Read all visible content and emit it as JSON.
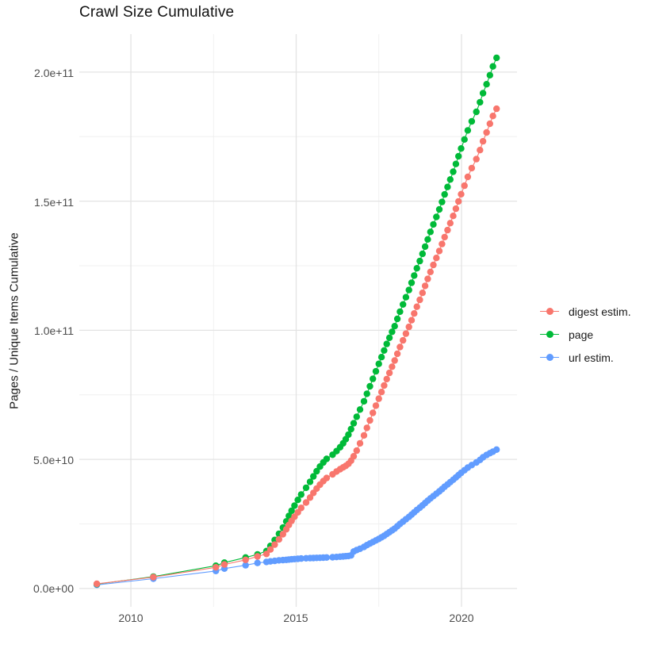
{
  "title": "Crawl Size Cumulative",
  "axes": {
    "y_label": "Pages / Unique Items Cumulative",
    "y_ticks": [
      "0.0e+00",
      "5.0e+10",
      "1.0e+11",
      "1.5e+11",
      "2.0e+11"
    ],
    "x_ticks": [
      "2010",
      "2015",
      "2020"
    ]
  },
  "legend": {
    "items": [
      {
        "label": "digest estim.",
        "color": "#F8766D"
      },
      {
        "label": "page",
        "color": "#00BA38"
      },
      {
        "label": "url estim.",
        "color": "#619CFF"
      }
    ]
  },
  "style_colors": {
    "grid_major": "#e3e3e3",
    "grid_minor": "#f0f0f0",
    "axis_text": "#4d4d4d",
    "title_text": "#111111"
  },
  "chart_data": {
    "type": "scatter",
    "title": "Crawl Size Cumulative",
    "xlabel": "",
    "ylabel": "Pages / Unique Items Cumulative",
    "xlim": [
      2008.44,
      2021.68
    ],
    "ylim_billions": [
      -7.1,
      214.7
    ],
    "x_major": [
      2010,
      2015,
      2020
    ],
    "x_minor": [
      2012.5,
      2017.5
    ],
    "y_major_billions": [
      0,
      50,
      100,
      150,
      200
    ],
    "y_minor_billions": [
      25,
      75,
      125,
      175
    ],
    "y_unit": 1000000000.0,
    "grid": true,
    "legend_position": "right",
    "point_radius": 4.2,
    "series": [
      {
        "name": "digest estim.",
        "color": "#F8766D",
        "points_year_billions": [
          [
            2008.97,
            1.8
          ],
          [
            2010.68,
            4.4
          ],
          [
            2012.57,
            8.2
          ],
          [
            2012.83,
            9.3
          ],
          [
            2013.47,
            11.1
          ],
          [
            2013.83,
            12.4
          ],
          [
            2014.1,
            13.4
          ],
          [
            2014.22,
            15.1
          ],
          [
            2014.35,
            17.0
          ],
          [
            2014.48,
            19.0
          ],
          [
            2014.6,
            21.0
          ],
          [
            2014.7,
            22.9
          ],
          [
            2014.78,
            24.6
          ],
          [
            2014.86,
            26.2
          ],
          [
            2014.95,
            27.8
          ],
          [
            2015.05,
            29.5
          ],
          [
            2015.15,
            31.2
          ],
          [
            2015.3,
            33.3
          ],
          [
            2015.42,
            35.2
          ],
          [
            2015.52,
            37.0
          ],
          [
            2015.62,
            38.7
          ],
          [
            2015.72,
            40.2
          ],
          [
            2015.82,
            41.6
          ],
          [
            2015.92,
            42.8
          ],
          [
            2016.1,
            44.2
          ],
          [
            2016.22,
            45.3
          ],
          [
            2016.33,
            46.2
          ],
          [
            2016.42,
            46.9
          ],
          [
            2016.5,
            47.5
          ],
          [
            2016.58,
            48.3
          ],
          [
            2016.66,
            49.5
          ],
          [
            2016.74,
            51.2
          ],
          [
            2016.83,
            53.4
          ],
          [
            2016.93,
            56.2
          ],
          [
            2017.05,
            59.3
          ],
          [
            2017.14,
            62.2
          ],
          [
            2017.23,
            65.1
          ],
          [
            2017.32,
            68.0
          ],
          [
            2017.41,
            70.8
          ],
          [
            2017.5,
            73.5
          ],
          [
            2017.58,
            76.1
          ],
          [
            2017.66,
            78.6
          ],
          [
            2017.74,
            81.1
          ],
          [
            2017.82,
            83.5
          ],
          [
            2017.9,
            85.9
          ],
          [
            2017.98,
            88.3
          ],
          [
            2018.06,
            90.9
          ],
          [
            2018.14,
            93.5
          ],
          [
            2018.23,
            96.1
          ],
          [
            2018.32,
            98.7
          ],
          [
            2018.41,
            101.3
          ],
          [
            2018.49,
            103.9
          ],
          [
            2018.57,
            106.5
          ],
          [
            2018.65,
            109.1
          ],
          [
            2018.74,
            111.8
          ],
          [
            2018.82,
            114.5
          ],
          [
            2018.9,
            117.2
          ],
          [
            2018.98,
            119.9
          ],
          [
            2019.06,
            122.6
          ],
          [
            2019.15,
            125.3
          ],
          [
            2019.24,
            128.0
          ],
          [
            2019.33,
            130.7
          ],
          [
            2019.41,
            133.4
          ],
          [
            2019.49,
            136.1
          ],
          [
            2019.58,
            138.8
          ],
          [
            2019.66,
            141.5
          ],
          [
            2019.75,
            144.3
          ],
          [
            2019.83,
            147.1
          ],
          [
            2019.91,
            149.9
          ],
          [
            2019.99,
            152.7
          ],
          [
            2020.09,
            156.0
          ],
          [
            2020.19,
            159.4
          ],
          [
            2020.31,
            162.8
          ],
          [
            2020.45,
            166.3
          ],
          [
            2020.56,
            169.8
          ],
          [
            2020.65,
            173.2
          ],
          [
            2020.76,
            176.6
          ],
          [
            2020.86,
            180.0
          ],
          [
            2020.95,
            183.0
          ],
          [
            2021.06,
            185.8
          ]
        ]
      },
      {
        "name": "page",
        "color": "#00BA38",
        "points_year_billions": [
          [
            2008.97,
            1.7
          ],
          [
            2010.68,
            4.6
          ],
          [
            2012.57,
            8.8
          ],
          [
            2012.83,
            10.0
          ],
          [
            2013.47,
            12.0
          ],
          [
            2013.83,
            13.2
          ],
          [
            2014.1,
            14.5
          ],
          [
            2014.22,
            16.5
          ],
          [
            2014.35,
            18.8
          ],
          [
            2014.48,
            21.2
          ],
          [
            2014.6,
            23.6
          ],
          [
            2014.7,
            26.0
          ],
          [
            2014.78,
            28.1
          ],
          [
            2014.86,
            30.1
          ],
          [
            2014.95,
            32.1
          ],
          [
            2015.05,
            34.3
          ],
          [
            2015.15,
            36.4
          ],
          [
            2015.3,
            39.0
          ],
          [
            2015.42,
            41.3
          ],
          [
            2015.52,
            43.4
          ],
          [
            2015.62,
            45.4
          ],
          [
            2015.72,
            47.2
          ],
          [
            2015.82,
            48.8
          ],
          [
            2015.92,
            50.2
          ],
          [
            2016.1,
            51.8
          ],
          [
            2016.22,
            53.2
          ],
          [
            2016.33,
            54.7
          ],
          [
            2016.42,
            56.2
          ],
          [
            2016.5,
            57.8
          ],
          [
            2016.58,
            59.6
          ],
          [
            2016.66,
            61.7
          ],
          [
            2016.74,
            64.0
          ],
          [
            2016.83,
            66.5
          ],
          [
            2016.93,
            69.3
          ],
          [
            2017.05,
            72.5
          ],
          [
            2017.14,
            75.4
          ],
          [
            2017.23,
            78.3
          ],
          [
            2017.32,
            81.2
          ],
          [
            2017.41,
            84.1
          ],
          [
            2017.5,
            87.0
          ],
          [
            2017.58,
            89.6
          ],
          [
            2017.66,
            92.2
          ],
          [
            2017.74,
            94.7
          ],
          [
            2017.82,
            97.1
          ],
          [
            2017.9,
            99.4
          ],
          [
            2017.98,
            101.6
          ],
          [
            2018.06,
            104.4
          ],
          [
            2018.14,
            107.2
          ],
          [
            2018.23,
            110.0
          ],
          [
            2018.32,
            112.8
          ],
          [
            2018.41,
            115.6
          ],
          [
            2018.49,
            118.4
          ],
          [
            2018.57,
            121.2
          ],
          [
            2018.65,
            124.0
          ],
          [
            2018.74,
            126.8
          ],
          [
            2018.82,
            129.6
          ],
          [
            2018.9,
            132.4
          ],
          [
            2018.98,
            135.2
          ],
          [
            2019.06,
            138.1
          ],
          [
            2019.15,
            141.0
          ],
          [
            2019.24,
            143.9
          ],
          [
            2019.33,
            146.8
          ],
          [
            2019.41,
            149.7
          ],
          [
            2019.49,
            152.6
          ],
          [
            2019.58,
            155.5
          ],
          [
            2019.66,
            158.4
          ],
          [
            2019.75,
            161.4
          ],
          [
            2019.83,
            164.4
          ],
          [
            2019.91,
            167.4
          ],
          [
            2019.99,
            170.4
          ],
          [
            2020.09,
            173.9
          ],
          [
            2020.19,
            177.4
          ],
          [
            2020.31,
            180.9
          ],
          [
            2020.45,
            184.6
          ],
          [
            2020.56,
            188.3
          ],
          [
            2020.65,
            191.8
          ],
          [
            2020.76,
            195.3
          ],
          [
            2020.86,
            198.8
          ],
          [
            2020.95,
            202.2
          ],
          [
            2021.06,
            205.5
          ]
        ]
      },
      {
        "name": "url estim.",
        "color": "#619CFF",
        "points_year_billions": [
          [
            2008.97,
            1.4
          ],
          [
            2010.68,
            3.8
          ],
          [
            2012.57,
            6.8
          ],
          [
            2012.83,
            7.7
          ],
          [
            2013.47,
            9.0
          ],
          [
            2013.83,
            9.9
          ],
          [
            2014.1,
            10.3
          ],
          [
            2014.22,
            10.5
          ],
          [
            2014.35,
            10.7
          ],
          [
            2014.48,
            10.9
          ],
          [
            2014.6,
            11.0
          ],
          [
            2014.7,
            11.1
          ],
          [
            2014.78,
            11.2
          ],
          [
            2014.86,
            11.3
          ],
          [
            2014.95,
            11.4
          ],
          [
            2015.05,
            11.5
          ],
          [
            2015.15,
            11.6
          ],
          [
            2015.3,
            11.7
          ],
          [
            2015.42,
            11.75
          ],
          [
            2015.52,
            11.8
          ],
          [
            2015.62,
            11.85
          ],
          [
            2015.72,
            11.9
          ],
          [
            2015.82,
            11.95
          ],
          [
            2015.92,
            12.0
          ],
          [
            2016.1,
            12.1
          ],
          [
            2016.22,
            12.2
          ],
          [
            2016.33,
            12.3
          ],
          [
            2016.42,
            12.4
          ],
          [
            2016.5,
            12.5
          ],
          [
            2016.58,
            12.6
          ],
          [
            2016.66,
            12.8
          ],
          [
            2016.74,
            14.3
          ],
          [
            2016.83,
            14.9
          ],
          [
            2016.93,
            15.4
          ],
          [
            2017.05,
            16.1
          ],
          [
            2017.14,
            16.8
          ],
          [
            2017.23,
            17.4
          ],
          [
            2017.32,
            18.0
          ],
          [
            2017.41,
            18.6
          ],
          [
            2017.5,
            19.2
          ],
          [
            2017.58,
            19.8
          ],
          [
            2017.66,
            20.4
          ],
          [
            2017.74,
            21.1
          ],
          [
            2017.82,
            21.8
          ],
          [
            2017.9,
            22.5
          ],
          [
            2017.98,
            23.2
          ],
          [
            2018.06,
            24.1
          ],
          [
            2018.14,
            25.0
          ],
          [
            2018.23,
            25.9
          ],
          [
            2018.32,
            26.8
          ],
          [
            2018.41,
            27.7
          ],
          [
            2018.49,
            28.6
          ],
          [
            2018.57,
            29.5
          ],
          [
            2018.65,
            30.4
          ],
          [
            2018.74,
            31.3
          ],
          [
            2018.82,
            32.2
          ],
          [
            2018.9,
            33.1
          ],
          [
            2018.98,
            34.0
          ],
          [
            2019.06,
            34.9
          ],
          [
            2019.15,
            35.8
          ],
          [
            2019.24,
            36.7
          ],
          [
            2019.33,
            37.6
          ],
          [
            2019.41,
            38.5
          ],
          [
            2019.49,
            39.4
          ],
          [
            2019.58,
            40.3
          ],
          [
            2019.66,
            41.2
          ],
          [
            2019.75,
            42.1
          ],
          [
            2019.83,
            43.0
          ],
          [
            2019.91,
            43.9
          ],
          [
            2019.99,
            44.8
          ],
          [
            2020.09,
            45.8
          ],
          [
            2020.19,
            46.8
          ],
          [
            2020.31,
            47.8
          ],
          [
            2020.45,
            48.8
          ],
          [
            2020.56,
            49.8
          ],
          [
            2020.65,
            50.8
          ],
          [
            2020.76,
            51.7
          ],
          [
            2020.86,
            52.4
          ],
          [
            2020.95,
            53.0
          ],
          [
            2021.06,
            53.8
          ]
        ]
      }
    ]
  }
}
